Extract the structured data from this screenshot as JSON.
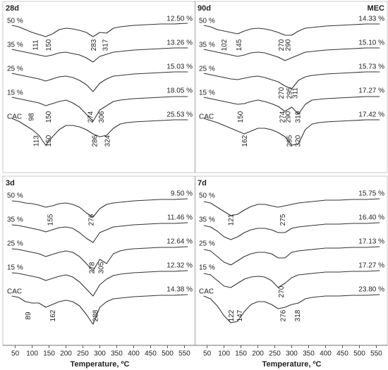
{
  "chart_data": [
    {
      "type": "line",
      "title": "28d",
      "xlim": [
        30,
        570
      ],
      "x": [
        40,
        60,
        80,
        100,
        120,
        140,
        160,
        180,
        200,
        220,
        240,
        260,
        280,
        300,
        320,
        340,
        360,
        380,
        400,
        440,
        480,
        520,
        560
      ],
      "series": [
        {
          "name": "50 %",
          "color": "#333333",
          "mass_loss": "12.50 %",
          "peaks": [
            111,
            150,
            283,
            317
          ],
          "values": [
            4,
            2,
            -2,
            -6,
            -9,
            -12,
            -8,
            -2,
            0,
            -1,
            -3,
            -6,
            -12,
            -6,
            -7,
            0,
            2,
            3,
            4,
            5,
            6,
            6,
            7
          ]
        },
        {
          "name": "35 %",
          "color": "#333333",
          "mass_loss": "13.26 %",
          "peaks": [],
          "values": [
            4,
            2,
            0,
            -2,
            -4,
            -6,
            -4,
            -1,
            0,
            -2,
            -4,
            -8,
            -14,
            -6,
            -3,
            0,
            1,
            2,
            3,
            4,
            5,
            6,
            6
          ]
        },
        {
          "name": "25 %",
          "color": "#333333",
          "mass_loss": "15.03 %",
          "peaks": [],
          "values": [
            4,
            2,
            0,
            -2,
            -4,
            -7,
            -4,
            -1,
            0,
            -2,
            -6,
            -12,
            -22,
            -10,
            -4,
            0,
            1,
            2,
            3,
            4,
            5,
            6,
            6
          ]
        },
        {
          "name": "15 %",
          "color": "#333333",
          "mass_loss": "18.05 %",
          "peaks": [
            98,
            150,
            274,
            306
          ],
          "values": [
            4,
            2,
            0,
            -2,
            -4,
            -8,
            -5,
            -2,
            0,
            -4,
            -10,
            -20,
            -30,
            -14,
            -8,
            -2,
            0,
            1,
            2,
            3,
            4,
            5,
            5
          ]
        },
        {
          "name": "CAC",
          "color": "#333333",
          "mass_loss": "25.53 %",
          "peaks": [
            113,
            150,
            286,
            324
          ],
          "values": [
            8,
            4,
            -2,
            -8,
            -16,
            -30,
            -18,
            -8,
            -2,
            -2,
            -4,
            -8,
            -14,
            -18,
            -16,
            -6,
            0,
            2,
            3,
            4,
            5,
            6,
            6
          ]
        }
      ]
    },
    {
      "type": "line",
      "title": "90d",
      "annotation": "MEC",
      "xlim": [
        30,
        570
      ],
      "x": [
        40,
        60,
        80,
        100,
        120,
        140,
        160,
        180,
        200,
        220,
        240,
        260,
        280,
        300,
        320,
        340,
        360,
        380,
        400,
        440,
        480,
        520,
        560
      ],
      "series": [
        {
          "name": "50 %",
          "color": "#333333",
          "mass_loss": "14.33 %",
          "peaks": [
            102,
            145,
            270,
            290
          ],
          "values": [
            4,
            2,
            -2,
            -4,
            -6,
            -8,
            -4,
            -1,
            0,
            -1,
            -3,
            -6,
            -10,
            -10,
            -4,
            0,
            1,
            2,
            3,
            4,
            5,
            6,
            6
          ]
        },
        {
          "name": "35 %",
          "color": "#333333",
          "mass_loss": "15.10 %",
          "peaks": [],
          "values": [
            4,
            2,
            0,
            -2,
            -4,
            -6,
            -4,
            -1,
            0,
            -1,
            -4,
            -7,
            -12,
            -8,
            -4,
            0,
            1,
            2,
            3,
            4,
            5,
            6,
            6
          ]
        },
        {
          "name": "25 %",
          "color": "#333333",
          "mass_loss": "15.73 %",
          "peaks": [
            270,
            295,
            311
          ],
          "values": [
            4,
            2,
            0,
            -2,
            -4,
            -5,
            -3,
            -1,
            0,
            -2,
            -5,
            -8,
            -14,
            -18,
            -6,
            -1,
            1,
            2,
            3,
            4,
            5,
            6,
            6
          ]
        },
        {
          "name": "15 %",
          "color": "#333333",
          "mass_loss": "17.27 %",
          "peaks": [
            150,
            274,
            290,
            319
          ],
          "values": [
            4,
            2,
            0,
            -2,
            -4,
            -6,
            -5,
            -2,
            0,
            -2,
            -5,
            -9,
            -16,
            -10,
            -20,
            -6,
            0,
            1,
            2,
            3,
            4,
            5,
            5
          ]
        },
        {
          "name": "CAC",
          "color": "#333333",
          "mass_loss": "17.42 %",
          "peaks": [
            162,
            295,
            320
          ],
          "values": [
            8,
            5,
            2,
            -2,
            -6,
            -10,
            -14,
            -10,
            -6,
            -6,
            -8,
            -12,
            -18,
            -30,
            -28,
            -8,
            0,
            2,
            3,
            4,
            5,
            6,
            6
          ]
        }
      ]
    },
    {
      "type": "line",
      "title": "3d",
      "xlim": [
        30,
        570
      ],
      "xticks": [
        50,
        100,
        150,
        200,
        250,
        300,
        350,
        400,
        450,
        500,
        550
      ],
      "xlabel": "Temperature, ºC",
      "x": [
        40,
        60,
        80,
        100,
        120,
        140,
        160,
        180,
        200,
        220,
        240,
        260,
        280,
        300,
        320,
        340,
        360,
        380,
        400,
        440,
        480,
        520,
        560
      ],
      "series": [
        {
          "name": "50 %",
          "color": "#333333",
          "mass_loss": "9.50 %",
          "peaks": [
            155,
            276
          ],
          "values": [
            3,
            2,
            0,
            -1,
            -3,
            -6,
            -4,
            -1,
            0,
            -2,
            -6,
            -14,
            -20,
            -8,
            -2,
            0,
            1,
            2,
            3,
            4,
            5,
            5,
            6
          ]
        },
        {
          "name": "35 %",
          "color": "#333333",
          "mass_loss": "11.46 %",
          "peaks": [],
          "values": [
            3,
            2,
            0,
            -2,
            -4,
            -7,
            -4,
            -1,
            0,
            -2,
            -8,
            -16,
            -22,
            -8,
            -4,
            0,
            1,
            2,
            3,
            4,
            5,
            5,
            6
          ]
        },
        {
          "name": "25 %",
          "color": "#333333",
          "mass_loss": "12.64 %",
          "peaks": [
            278,
            305
          ],
          "values": [
            3,
            2,
            0,
            -2,
            -4,
            -8,
            -5,
            -2,
            0,
            -2,
            -8,
            -18,
            -28,
            -12,
            -18,
            -4,
            0,
            2,
            3,
            4,
            5,
            5,
            6
          ]
        },
        {
          "name": "15 %",
          "color": "#333333",
          "mass_loss": "12.32 %",
          "peaks": [],
          "values": [
            3,
            2,
            0,
            -2,
            -4,
            -8,
            -5,
            -2,
            0,
            -3,
            -10,
            -20,
            -30,
            -14,
            -6,
            -1,
            1,
            2,
            3,
            4,
            5,
            5,
            6
          ]
        },
        {
          "name": "CAC",
          "color": "#333333",
          "mass_loss": "14.38 %",
          "peaks": [
            89,
            162,
            288
          ],
          "values": [
            4,
            2,
            -4,
            -6,
            -6,
            -12,
            -8,
            -4,
            -2,
            -4,
            -10,
            -22,
            -36,
            -12,
            -4,
            0,
            1,
            2,
            3,
            4,
            5,
            5,
            6
          ]
        }
      ]
    },
    {
      "type": "line",
      "title": "7d",
      "xlim": [
        30,
        570
      ],
      "xticks": [
        50,
        100,
        150,
        200,
        250,
        300,
        350,
        400,
        450,
        500,
        550
      ],
      "xlabel": "Temperature, ºC",
      "x": [
        40,
        60,
        80,
        100,
        120,
        140,
        160,
        180,
        200,
        220,
        240,
        260,
        280,
        300,
        320,
        340,
        360,
        380,
        400,
        440,
        480,
        520,
        560
      ],
      "series": [
        {
          "name": "50 %",
          "color": "#333333",
          "mass_loss": "15.75 %",
          "peaks": [
            121,
            275
          ],
          "values": [
            2,
            0,
            -6,
            -12,
            -18,
            -16,
            -10,
            -5,
            -2,
            -2,
            -4,
            -6,
            -4,
            -2,
            0,
            1,
            2,
            3,
            4,
            4,
            5,
            5,
            6
          ]
        },
        {
          "name": "35 %",
          "color": "#333333",
          "mass_loss": "16.40 %",
          "peaks": [],
          "values": [
            2,
            0,
            -6,
            -14,
            -18,
            -14,
            -8,
            -4,
            -2,
            -2,
            -4,
            -8,
            -8,
            -2,
            0,
            1,
            2,
            3,
            4,
            4,
            5,
            5,
            6
          ]
        },
        {
          "name": "25 %",
          "color": "#333333",
          "mass_loss": "17.13 %",
          "peaks": [],
          "values": [
            2,
            0,
            -8,
            -16,
            -20,
            -14,
            -8,
            -4,
            -2,
            -2,
            -4,
            -10,
            -10,
            -2,
            0,
            1,
            2,
            3,
            4,
            4,
            5,
            5,
            6
          ]
        },
        {
          "name": "15 %",
          "color": "#333333",
          "mass_loss": "17.27 %",
          "peaks": [
            270
          ],
          "values": [
            2,
            0,
            -8,
            -16,
            -18,
            -12,
            -6,
            -3,
            -2,
            -3,
            -8,
            -18,
            -12,
            -4,
            0,
            1,
            2,
            3,
            4,
            4,
            5,
            5,
            6
          ]
        },
        {
          "name": "CAC",
          "color": "#333333",
          "mass_loss": "23.80 %",
          "peaks": [
            122,
            147,
            276,
            318
          ],
          "values": [
            4,
            0,
            -10,
            -24,
            -34,
            -32,
            -18,
            -8,
            -4,
            -4,
            -8,
            -14,
            -12,
            -8,
            -6,
            0,
            2,
            3,
            4,
            4,
            5,
            5,
            6
          ]
        }
      ]
    }
  ]
}
